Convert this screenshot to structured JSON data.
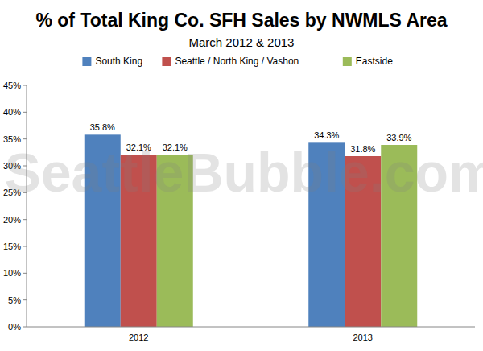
{
  "chart_data": {
    "type": "bar",
    "title": "% of Total King Co. SFH Sales by NWMLS Area",
    "subtitle": "March 2012 & 2013",
    "annotations": [
      "SeattleBubble.com"
    ],
    "categories": [
      "2012",
      "2013"
    ],
    "series": [
      {
        "name": "South King",
        "color": "#4f81bd",
        "values": [
          35.8,
          34.3
        ],
        "value_labels": [
          "35.8%",
          "34.3%"
        ]
      },
      {
        "name": "Seattle / North King / Vashon",
        "color": "#c0504d",
        "values": [
          32.1,
          31.8
        ],
        "value_labels": [
          "32.1%",
          "31.8%"
        ]
      },
      {
        "name": "Eastside",
        "color": "#9bbb59",
        "values": [
          32.1,
          33.9
        ],
        "value_labels": [
          "32.1%",
          "33.9%"
        ]
      }
    ],
    "ylim": [
      0,
      45
    ],
    "yticks": [
      {
        "value": 0,
        "label": "0%"
      },
      {
        "value": 5,
        "label": "5%"
      },
      {
        "value": 10,
        "label": "10%"
      },
      {
        "value": 15,
        "label": "15%"
      },
      {
        "value": 20,
        "label": "20%"
      },
      {
        "value": 25,
        "label": "25%"
      },
      {
        "value": 30,
        "label": "30%"
      },
      {
        "value": 35,
        "label": "35%"
      },
      {
        "value": 40,
        "label": "40%"
      },
      {
        "value": 45,
        "label": "45%"
      }
    ],
    "grid": false,
    "legend": "top",
    "data_labels": true
  }
}
